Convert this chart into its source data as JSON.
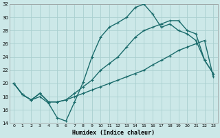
{
  "xlabel": "Humidex (Indice chaleur)",
  "bg_color": "#cce8e8",
  "line_color": "#1a6b6b",
  "grid_color": "#aad0d0",
  "xlim": [
    -0.5,
    23.5
  ],
  "ylim": [
    14,
    32
  ],
  "xticks": [
    0,
    1,
    2,
    3,
    4,
    5,
    6,
    7,
    8,
    9,
    10,
    11,
    12,
    13,
    14,
    15,
    16,
    17,
    18,
    19,
    20,
    21,
    22,
    23
  ],
  "yticks": [
    14,
    16,
    18,
    20,
    22,
    24,
    26,
    28,
    30,
    32
  ],
  "line1_x": [
    0,
    1,
    2,
    3,
    4,
    5,
    6,
    7,
    8,
    9,
    10,
    11,
    12,
    13,
    14,
    15,
    16,
    17,
    18,
    19,
    20,
    21,
    22,
    23
  ],
  "line1_y": [
    20,
    18.3,
    17.5,
    18,
    17,
    14.8,
    14.3,
    17.2,
    20.2,
    24,
    27,
    28.5,
    29.2,
    30,
    31.5,
    32,
    30.5,
    28.5,
    29,
    28,
    27.5,
    26.5,
    23.5,
    21.5
  ],
  "line2_x": [
    0,
    1,
    2,
    3,
    4,
    5,
    6,
    7,
    8,
    9,
    10,
    11,
    12,
    13,
    14,
    15,
    16,
    17,
    18,
    19,
    20,
    21,
    22,
    23
  ],
  "line2_y": [
    20,
    18.3,
    17.5,
    18.5,
    17.2,
    17.2,
    17.5,
    18.0,
    18.5,
    19.0,
    19.5,
    20.0,
    20.5,
    21.0,
    21.5,
    22.0,
    22.8,
    23.5,
    24.2,
    25.0,
    25.5,
    26.0,
    26.5,
    21.0
  ],
  "line3_x": [
    0,
    1,
    2,
    3,
    4,
    5,
    6,
    7,
    8,
    9,
    10,
    11,
    12,
    13,
    14,
    15,
    16,
    17,
    18,
    19,
    20,
    21,
    22,
    23
  ],
  "line3_y": [
    20,
    18.3,
    17.5,
    18.5,
    17.2,
    17.2,
    17.5,
    18.5,
    19.5,
    20.5,
    22.0,
    23.0,
    24.0,
    25.5,
    27.0,
    28.0,
    28.5,
    29.0,
    29.5,
    29.5,
    28.0,
    27.5,
    23.5,
    21.5
  ],
  "markersize": 3,
  "linewidth": 1.0
}
